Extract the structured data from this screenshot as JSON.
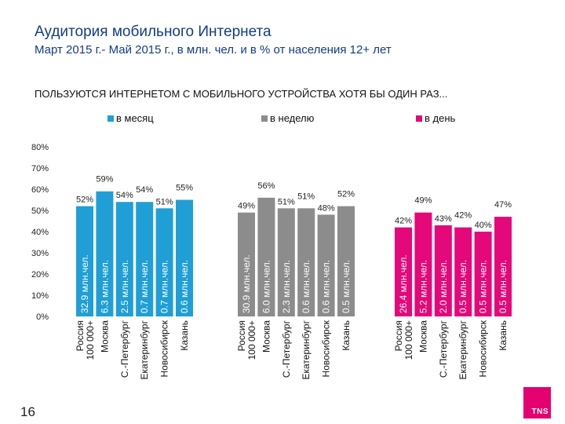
{
  "header": {
    "title": "Аудитория мобильного Интернета",
    "subtitle": "Март 2015 г.- Май 2015 г., в млн. чел. и в % от населения 12+ лет"
  },
  "section_heading": "ПОЛЬЗУЮТСЯ ИНТЕРНЕТОМ С МОБИЛЬНОГО УСТРОЙСТВА ХОТЯ БЫ ОДИН РАЗ...",
  "page_number": "16",
  "logo": {
    "text": "TNS",
    "color": "#e4006e"
  },
  "chart_data": {
    "type": "bar",
    "title": "ПОЛЬЗУЮТСЯ ИНТЕРНЕТОМ С МОБИЛЬНОГО УСТРОЙСТВА ХОТЯ БЫ ОДИН РАЗ...",
    "ylim": [
      0,
      80
    ],
    "yticks": [
      0,
      10,
      20,
      30,
      40,
      50,
      60,
      70,
      80
    ],
    "ytick_labels": [
      "0%",
      "10%",
      "20%",
      "30%",
      "40%",
      "50%",
      "60%",
      "70%",
      "80%"
    ],
    "legend_position": "top",
    "categories": [
      "Россия\n100 000+",
      "Москва",
      "С.-Петербург",
      "Екатеринбург",
      "Новосибирск",
      "Казань"
    ],
    "series": [
      {
        "name": "в месяц",
        "color": "#1f9fd6",
        "values": [
          52,
          59,
          54,
          54,
          51,
          55
        ],
        "value_labels": [
          "52%",
          "59%",
          "54%",
          "54%",
          "51%",
          "55%"
        ],
        "bar_labels": [
          "32.9 млн.чел.",
          "6.3 млн.чел.",
          "2.5 млн.чел.",
          "0.7 млн.чел.",
          "0.7 млн.чел.",
          "0.6 млн.чел."
        ]
      },
      {
        "name": "в неделю",
        "color": "#8c8c8c",
        "values": [
          49,
          56,
          51,
          51,
          48,
          52
        ],
        "value_labels": [
          "49%",
          "56%",
          "51%",
          "51%",
          "48%",
          "52%"
        ],
        "bar_labels": [
          "30.9 млн.чел.",
          "6.0 млн.чел.",
          "2.3 млн.чел.",
          "0.6 млн.чел.",
          "0.6 млн.чел.",
          "0.5 млн.чел."
        ]
      },
      {
        "name": "в день",
        "color": "#e4087a",
        "values": [
          42,
          49,
          43,
          42,
          40,
          47
        ],
        "value_labels": [
          "42%",
          "49%",
          "43%",
          "42%",
          "40%",
          "47%"
        ],
        "bar_labels": [
          "26.4 млн.чел.",
          "5.2 млн.чел.",
          "2.0 млн.чел.",
          "0.5 млн.чел.",
          "0.5 млн.чел.",
          "0.5 млн.чел."
        ]
      }
    ]
  }
}
